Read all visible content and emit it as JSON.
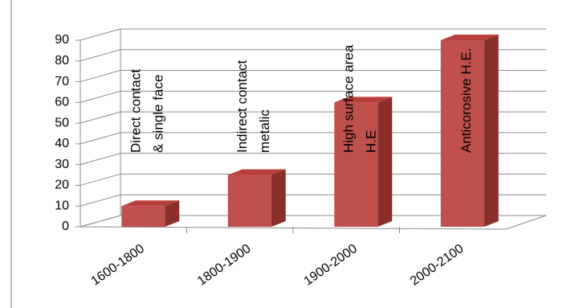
{
  "chart_data": {
    "type": "bar3d",
    "categories": [
      "1600-1800",
      "1800-1900",
      "1900-2000",
      "2000-2100"
    ],
    "values": [
      10,
      25,
      60,
      90
    ],
    "color": "#c0504d",
    "annotations": [
      [
        "Direct contact",
        "& single face"
      ],
      [
        "Indirect contact",
        "metalic"
      ],
      [
        "High surface area",
        "H.E"
      ],
      [
        "Anticorosive H.E."
      ]
    ],
    "ylim": [
      0,
      90
    ],
    "yticks": [
      0,
      10,
      20,
      30,
      40,
      50,
      60,
      70,
      80,
      90
    ],
    "grid": true
  }
}
